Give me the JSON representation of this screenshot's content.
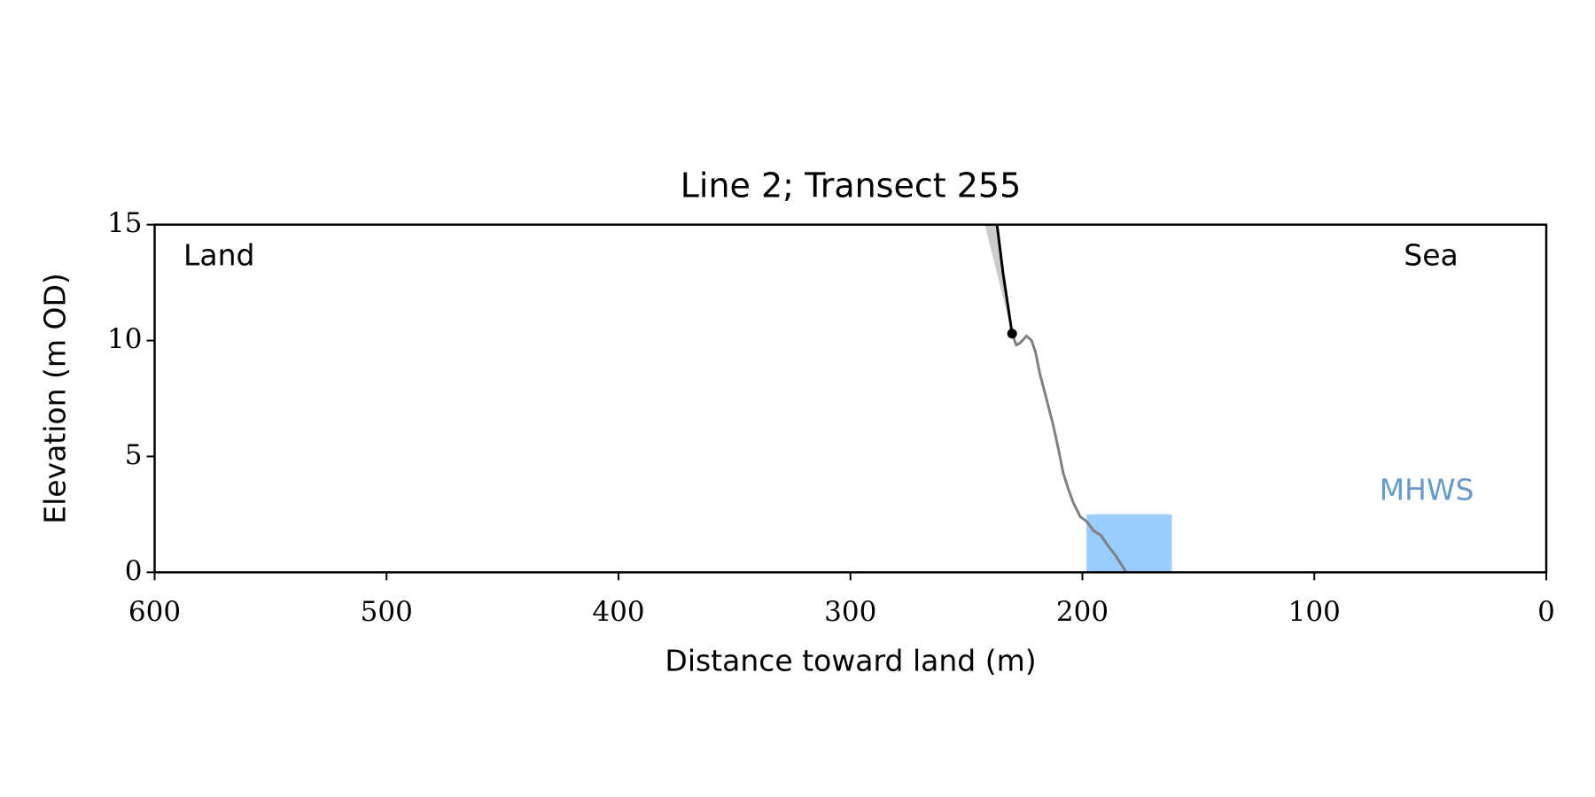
{
  "chart_data": {
    "type": "line",
    "title": "Line 2; Transect 255",
    "x_label": "Distance toward land (m)",
    "y_label": "Elevation (m OD)",
    "xlim": [
      600,
      0
    ],
    "ylim": [
      0,
      15
    ],
    "xticks": [
      600,
      500,
      400,
      300,
      200,
      100,
      0
    ],
    "yticks": [
      0,
      5,
      10,
      15
    ],
    "annotations": [
      {
        "text": "Land",
        "color": "#000000"
      },
      {
        "text": "Sea",
        "color": "#000000"
      },
      {
        "text": "MHWS",
        "color": "#6699cc"
      }
    ],
    "series": [
      {
        "style": "fill",
        "color": "#99ccff",
        "x": [
          198.2,
          161.4,
          161.4,
          198.2
        ],
        "values": [
          0,
          0,
          2.5,
          2.5
        ]
      },
      {
        "style": "fill",
        "color": "#cccccc",
        "x": [
          242.1,
          236.8,
          230.3
        ],
        "values": [
          15,
          15,
          10.3
        ]
      },
      {
        "style": "line",
        "color": "#808080",
        "x": [
          230.3,
          228.5,
          226.8,
          224.1,
          221.9,
          220.2,
          218.4,
          215.8,
          212.7,
          210.5,
          208.3,
          206.1,
          203.9,
          200.9,
          198.2,
          195.2,
          192.1,
          188.6,
          185.5,
          181.1
        ],
        "values": [
          10.3,
          9.8,
          9.9,
          10.2,
          10.0,
          9.5,
          8.6,
          7.6,
          6.4,
          5.4,
          4.3,
          3.6,
          3.0,
          2.4,
          2.2,
          1.8,
          1.6,
          1.1,
          0.7,
          0.0
        ]
      },
      {
        "style": "line",
        "color": "#000000",
        "x": [
          236.8,
          234.2,
          230.3
        ],
        "values": [
          15,
          12.9,
          10.3
        ]
      },
      {
        "style": "point",
        "color": "#000000",
        "x": [
          230.3
        ],
        "values": [
          10.3
        ]
      }
    ]
  }
}
